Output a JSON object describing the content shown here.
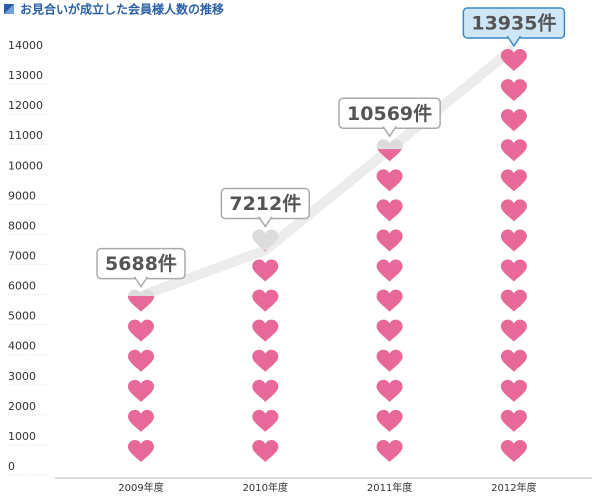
{
  "chart_data": {
    "type": "pictogram",
    "title": "お見合いが成立した会員様人数の推移",
    "categories": [
      "2009年度",
      "2010年度",
      "2011年度",
      "2012年度"
    ],
    "values": [
      5688,
      7212,
      10569,
      13935
    ],
    "value_labels": [
      "5688件",
      "7212件",
      "10569件",
      "13935件"
    ],
    "color": "#e8689a",
    "empty_color": "#dcdcdc",
    "line_color": "#ececec",
    "ylim": [
      0,
      14000
    ],
    "yticks": [
      0,
      1000,
      2000,
      3000,
      4000,
      5000,
      6000,
      7000,
      8000,
      9000,
      10000,
      11000,
      12000,
      13000,
      14000
    ],
    "grid": true
  }
}
